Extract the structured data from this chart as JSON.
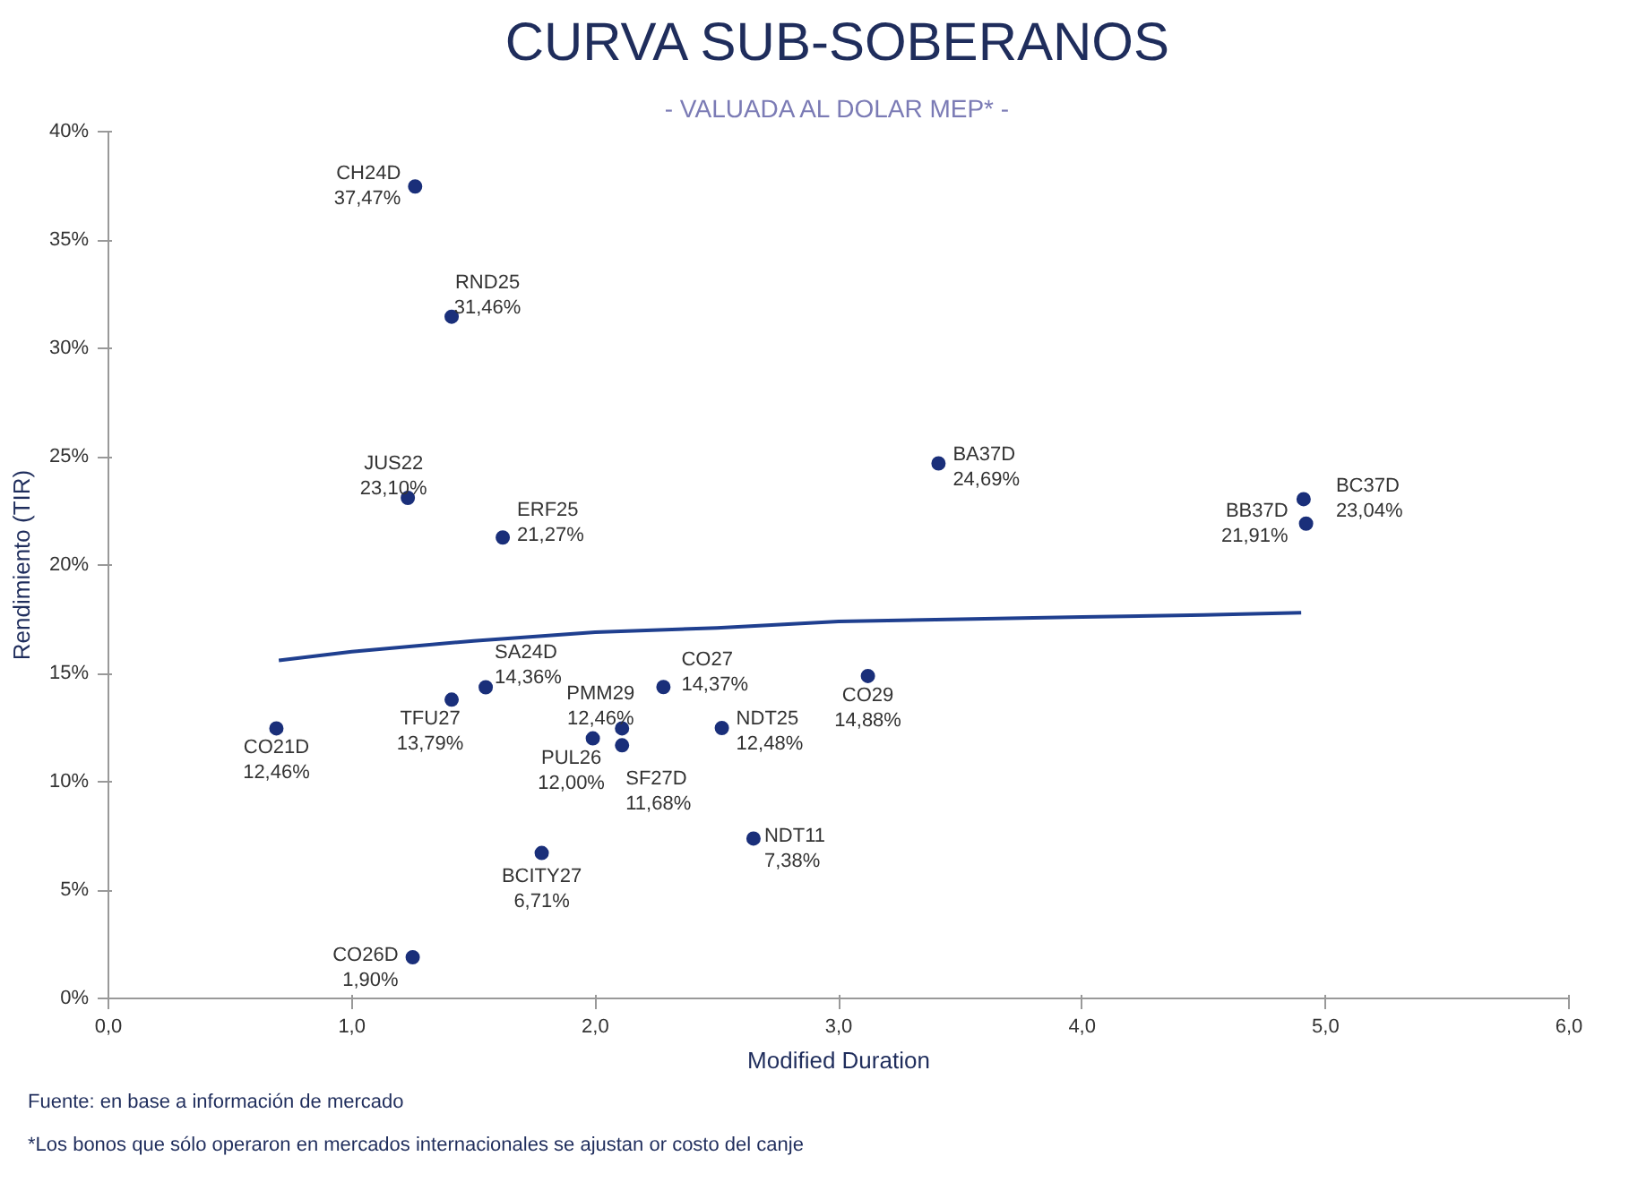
{
  "chart_data": {
    "type": "scatter",
    "title": "CURVA SUB-SOBERANOS",
    "subtitle": "- VALUADA AL DOLAR MEP* -",
    "xlabel": "Modified Duration",
    "ylabel": "Rendimiento (TIR)",
    "xlim": [
      0,
      6
    ],
    "ylim": [
      0,
      40
    ],
    "xticks": [
      {
        "value": 0,
        "label": "0,0"
      },
      {
        "value": 1,
        "label": "1,0"
      },
      {
        "value": 2,
        "label": "2,0"
      },
      {
        "value": 3,
        "label": "3,0"
      },
      {
        "value": 4,
        "label": "4,0"
      },
      {
        "value": 5,
        "label": "5,0"
      },
      {
        "value": 6,
        "label": "6,0"
      }
    ],
    "yticks": [
      {
        "value": 0,
        "label": "0%"
      },
      {
        "value": 5,
        "label": "5%"
      },
      {
        "value": 10,
        "label": "10%"
      },
      {
        "value": 15,
        "label": "15%"
      },
      {
        "value": 20,
        "label": "20%"
      },
      {
        "value": 25,
        "label": "25%"
      },
      {
        "value": 30,
        "label": "30%"
      },
      {
        "value": 35,
        "label": "35%"
      },
      {
        "value": 40,
        "label": "40%"
      }
    ],
    "grid": false,
    "series": [
      {
        "marker": "circle",
        "color": "#1a2f7a",
        "x": [
          1.26,
          1.41,
          1.23,
          1.62,
          3.41,
          4.91,
          4.92,
          3.12,
          2.28,
          1.55,
          1.41,
          0.69,
          2.11,
          2.52,
          1.99,
          2.11,
          2.65,
          1.78,
          1.25
        ],
        "values": [
          37.47,
          31.46,
          23.1,
          21.27,
          24.69,
          23.04,
          21.91,
          14.88,
          14.37,
          14.36,
          13.79,
          12.46,
          12.46,
          12.48,
          12.0,
          11.68,
          7.38,
          6.71,
          1.9
        ],
        "value_labels": [
          "37,47%",
          "31,46%",
          "23,10%",
          "21,27%",
          "24,69%",
          "23,04%",
          "21,91%",
          "14,88%",
          "14,37%",
          "14,36%",
          "13,79%",
          "12,46%",
          "12,46%",
          "12,48%",
          "12,00%",
          "11,68%",
          "7,38%",
          "6,71%",
          "1,90%"
        ]
      },
      {
        "type": "line",
        "color": "#1f3f8f",
        "x": [
          0.7,
          1.0,
          1.5,
          2.0,
          2.5,
          3.0,
          3.5,
          4.0,
          4.5,
          4.9
        ],
        "values": [
          15.6,
          16.0,
          16.5,
          16.9,
          17.1,
          17.4,
          17.5,
          17.6,
          17.7,
          17.8
        ]
      }
    ],
    "annotations": [
      {
        "text": "CH24D",
        "x": 1.26,
        "y": 37.47
      },
      {
        "text": "RND25",
        "x": 1.41,
        "y": 31.46
      },
      {
        "text": "JUS22",
        "x": 1.23,
        "y": 23.1
      },
      {
        "text": "ERF25",
        "x": 1.62,
        "y": 21.27
      },
      {
        "text": "BA37D",
        "x": 3.41,
        "y": 24.69
      },
      {
        "text": "BC37D",
        "x": 4.91,
        "y": 23.04
      },
      {
        "text": "BB37D",
        "x": 4.92,
        "y": 21.91
      },
      {
        "text": "CO29",
        "x": 3.12,
        "y": 14.88
      },
      {
        "text": "CO27",
        "x": 2.28,
        "y": 14.37
      },
      {
        "text": "SA24D",
        "x": 1.55,
        "y": 14.36
      },
      {
        "text": "TFU27",
        "x": 1.41,
        "y": 13.79
      },
      {
        "text": "CO21D",
        "x": 0.69,
        "y": 12.46
      },
      {
        "text": "PMM29",
        "x": 2.11,
        "y": 12.46
      },
      {
        "text": "NDT25",
        "x": 2.52,
        "y": 12.48
      },
      {
        "text": "PUL26",
        "x": 1.99,
        "y": 12.0
      },
      {
        "text": "SF27D",
        "x": 2.11,
        "y": 11.68
      },
      {
        "text": "NDT11",
        "x": 2.65,
        "y": 7.38
      },
      {
        "text": "BCITY27",
        "x": 1.78,
        "y": 6.71
      },
      {
        "text": "CO26D",
        "x": 1.25,
        "y": 1.9
      },
      "Fuente: en base a información de mercado",
      "*Los bonos que sólo operaron en mercados internacionales se ajustan or costo del canje"
    ]
  }
}
